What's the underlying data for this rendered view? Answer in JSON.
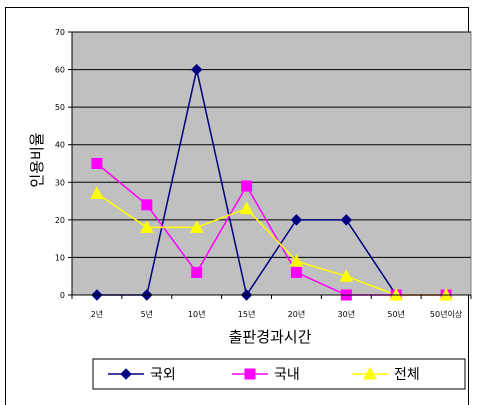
{
  "chart_data": {
    "type": "line",
    "title": "",
    "xlabel": "출판경과시간",
    "ylabel": "인용비율",
    "categories": [
      "2년",
      "5년",
      "10년",
      "15년",
      "20년",
      "30년",
      "50년",
      "50년이상"
    ],
    "ylim": [
      0,
      70
    ],
    "yticks": [
      0,
      10,
      20,
      30,
      40,
      50,
      60,
      70
    ],
    "grid": true,
    "legend_position": "bottom",
    "plot_background": "#c0c0c0",
    "series": [
      {
        "name": "국외",
        "values": [
          0,
          0,
          60,
          0,
          20,
          20,
          0,
          0
        ],
        "color": "#000080",
        "marker": "diamond"
      },
      {
        "name": "국내",
        "values": [
          35,
          24,
          6,
          29,
          6,
          0,
          0,
          0
        ],
        "color": "#ff00ff",
        "marker": "square"
      },
      {
        "name": "전체",
        "values": [
          27,
          18,
          18,
          23,
          9,
          5,
          0,
          0
        ],
        "color": "#ffff00",
        "marker": "triangle"
      }
    ]
  }
}
